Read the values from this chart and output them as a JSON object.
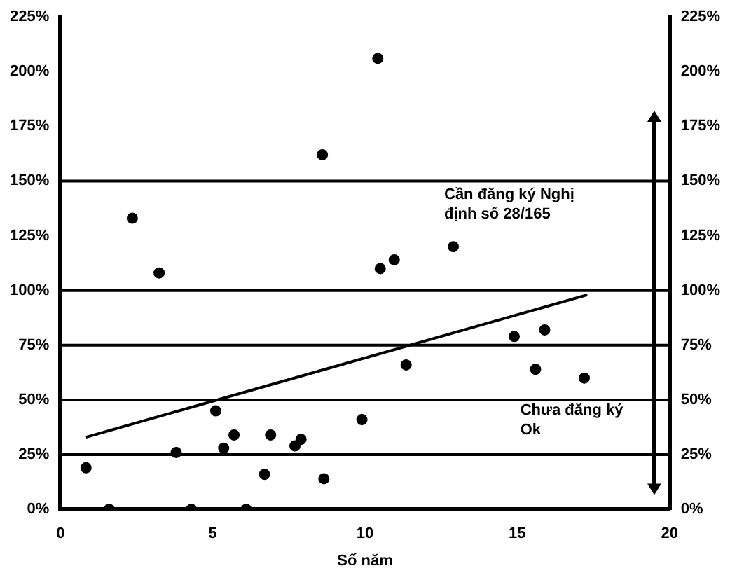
{
  "chart_data": {
    "type": "scatter",
    "xlabel": "Số năm",
    "xlim": [
      0,
      20
    ],
    "xticks": [
      0,
      5,
      10,
      15,
      20
    ],
    "ylim": [
      0,
      225
    ],
    "yticks": [
      {
        "value": 0,
        "label": "0%"
      },
      {
        "value": 25,
        "label": "25%"
      },
      {
        "value": 50,
        "label": "50%"
      },
      {
        "value": 75,
        "label": "75%"
      },
      {
        "value": 100,
        "label": "100%"
      },
      {
        "value": 125,
        "label": "125%"
      },
      {
        "value": 150,
        "label": "150%"
      },
      {
        "value": 175,
        "label": "175%"
      },
      {
        "value": 200,
        "label": "200%"
      },
      {
        "value": 225,
        "label": "225%"
      }
    ],
    "y2lim": [
      0,
      225
    ],
    "y2ticks": [
      {
        "value": 0,
        "label": "0%"
      },
      {
        "value": 25,
        "label": "25%"
      },
      {
        "value": 50,
        "label": "50%"
      },
      {
        "value": 75,
        "label": "75%"
      },
      {
        "value": 100,
        "label": "100%"
      },
      {
        "value": 125,
        "label": "125%"
      },
      {
        "value": 150,
        "label": "150%"
      },
      {
        "value": 175,
        "label": "175%"
      },
      {
        "value": 200,
        "label": "200%"
      },
      {
        "value": 225,
        "label": "225%"
      }
    ],
    "grid": false,
    "legend": false,
    "marker": "circle",
    "series": [
      {
        "type": "scatter",
        "color": "#000000",
        "x": [
          0.84,
          1.6,
          2.36,
          3.24,
          3.8,
          4.3,
          5.1,
          5.36,
          5.7,
          6.1,
          6.7,
          6.9,
          7.7,
          7.9,
          8.6,
          8.65,
          9.9,
          10.42,
          10.5,
          10.96,
          11.35,
          12.9,
          14.9,
          15.6,
          15.9,
          17.2
        ],
        "values": [
          19,
          0,
          133,
          108,
          26,
          0,
          45,
          28,
          34,
          0,
          16,
          34,
          29,
          32,
          162,
          14,
          41,
          206,
          110,
          114,
          66,
          120,
          79,
          64,
          82,
          60
        ]
      },
      {
        "type": "line",
        "color": "#000000",
        "marker": "none",
        "x": [
          0.84,
          17.3
        ],
        "values": [
          33,
          98
        ]
      }
    ],
    "ref_lines": [
      {
        "axis": "y",
        "value": 25,
        "color": "#000000"
      },
      {
        "axis": "y",
        "value": 50,
        "color": "#000000"
      },
      {
        "axis": "y",
        "value": 75,
        "color": "#000000"
      },
      {
        "axis": "y",
        "value": 100,
        "color": "#000000"
      },
      {
        "axis": "y",
        "value": 150,
        "color": "#000000"
      }
    ],
    "annotations": [
      "Cần đăng ký Nghị định số 28/165",
      "Chưa đăng ký Ok"
    ]
  }
}
